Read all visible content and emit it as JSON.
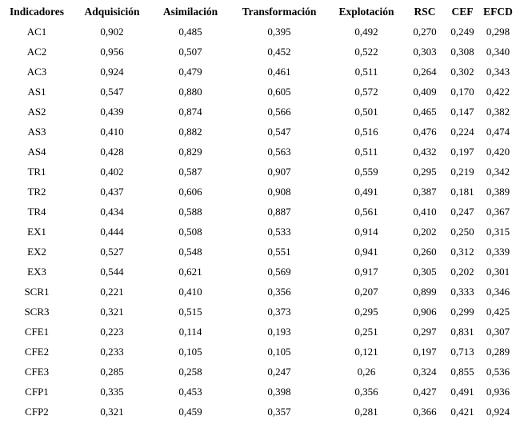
{
  "colors": {
    "text": "#000000",
    "background": "#ffffff"
  },
  "table": {
    "name": "cross-loadings-table",
    "columns": [
      "Indicadores",
      "Adquisición",
      "Asimilación",
      "Transformación",
      "Explotación",
      "RSC",
      "CEF",
      "EFCD"
    ],
    "rows": [
      {
        "label": "AC1",
        "values": [
          "0,902",
          "0,485",
          "0,395",
          "0,492",
          "0,270",
          "0,249",
          "0,298"
        ]
      },
      {
        "label": "AC2",
        "values": [
          "0,956",
          "0,507",
          "0,452",
          "0,522",
          "0,303",
          "0,308",
          "0,340"
        ]
      },
      {
        "label": "AC3",
        "values": [
          "0,924",
          "0,479",
          "0,461",
          "0,511",
          "0,264",
          "0,302",
          "0,343"
        ]
      },
      {
        "label": "AS1",
        "values": [
          "0,547",
          "0,880",
          "0,605",
          "0,572",
          "0,409",
          "0,170",
          "0,422"
        ]
      },
      {
        "label": "AS2",
        "values": [
          "0,439",
          "0,874",
          "0,566",
          "0,501",
          "0,465",
          "0,147",
          "0,382"
        ]
      },
      {
        "label": "AS3",
        "values": [
          "0,410",
          "0,882",
          "0,547",
          "0,516",
          "0,476",
          "0,224",
          "0,474"
        ]
      },
      {
        "label": "AS4",
        "values": [
          "0,428",
          "0,829",
          "0,563",
          "0,511",
          "0,432",
          "0,197",
          "0,420"
        ]
      },
      {
        "label": "TR1",
        "values": [
          "0,402",
          "0,587",
          "0,907",
          "0,559",
          "0,295",
          "0,219",
          "0,342"
        ]
      },
      {
        "label": "TR2",
        "values": [
          "0,437",
          "0,606",
          "0,908",
          "0,491",
          "0,387",
          "0,181",
          "0,389"
        ]
      },
      {
        "label": "TR4",
        "values": [
          "0,434",
          "0,588",
          "0,887",
          "0,561",
          "0,410",
          "0,247",
          "0,367"
        ]
      },
      {
        "label": "EX1",
        "values": [
          "0,444",
          "0,508",
          "0,533",
          "0,914",
          "0,202",
          "0,250",
          "0,315"
        ]
      },
      {
        "label": "EX2",
        "values": [
          "0,527",
          "0,548",
          "0,551",
          "0,941",
          "0,260",
          "0,312",
          "0,339"
        ]
      },
      {
        "label": "EX3",
        "values": [
          "0,544",
          "0,621",
          "0,569",
          "0,917",
          "0,305",
          "0,202",
          "0,301"
        ]
      },
      {
        "label": "SCR1",
        "values": [
          "0,221",
          "0,410",
          "0,356",
          "0,207",
          "0,899",
          "0,333",
          "0,346"
        ]
      },
      {
        "label": "SCR3",
        "values": [
          "0,321",
          "0,515",
          "0,373",
          "0,295",
          "0,906",
          "0,299",
          "0,425"
        ]
      },
      {
        "label": "CFE1",
        "values": [
          "0,223",
          "0,114",
          "0,193",
          "0,251",
          "0,297",
          "0,831",
          "0,307"
        ]
      },
      {
        "label": "CFE2",
        "values": [
          "0,233",
          "0,105",
          "0,105",
          "0,121",
          "0,197",
          "0,713",
          "0,289"
        ]
      },
      {
        "label": "CFE3",
        "values": [
          "0,285",
          "0,258",
          "0,247",
          "0,26",
          "0,324",
          "0,855",
          "0,536"
        ]
      },
      {
        "label": "CFP1",
        "values": [
          "0,335",
          "0,453",
          "0,398",
          "0,356",
          "0,427",
          "0,491",
          "0,936"
        ]
      },
      {
        "label": "CFP2",
        "values": [
          "0,321",
          "0,459",
          "0,357",
          "0,281",
          "0,366",
          "0,421",
          "0,924"
        ]
      }
    ]
  }
}
